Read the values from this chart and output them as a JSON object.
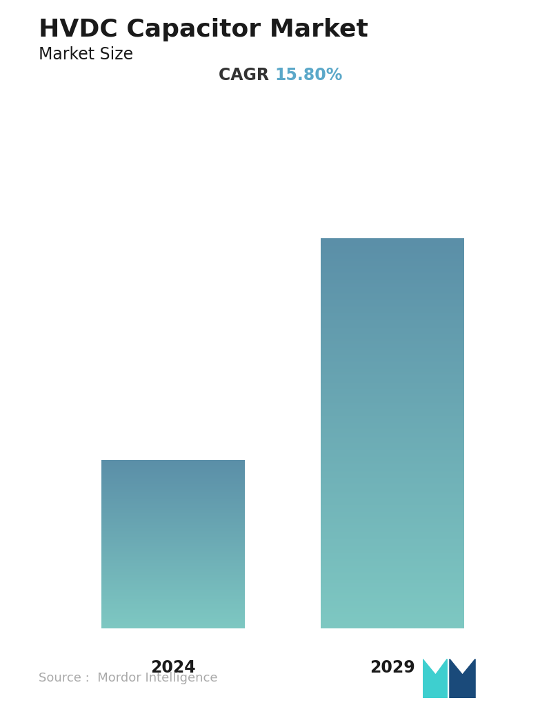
{
  "title": "HVDC Capacitor Market",
  "subtitle": "Market Size",
  "cagr_label": "CAGR",
  "cagr_value": "15.80%",
  "cagr_color": "#5ba8c9",
  "categories": [
    "2024",
    "2029"
  ],
  "values": [
    1.0,
    2.1
  ],
  "bar_color_top": "#5b8fa8",
  "bar_color_bottom": "#7ec8c2",
  "background_color": "#ffffff",
  "source_text": "Source :  Mordor Intelligence",
  "source_color": "#aaaaaa",
  "title_fontsize": 26,
  "subtitle_fontsize": 17,
  "cagr_fontsize": 17,
  "tick_fontsize": 17,
  "source_fontsize": 13
}
